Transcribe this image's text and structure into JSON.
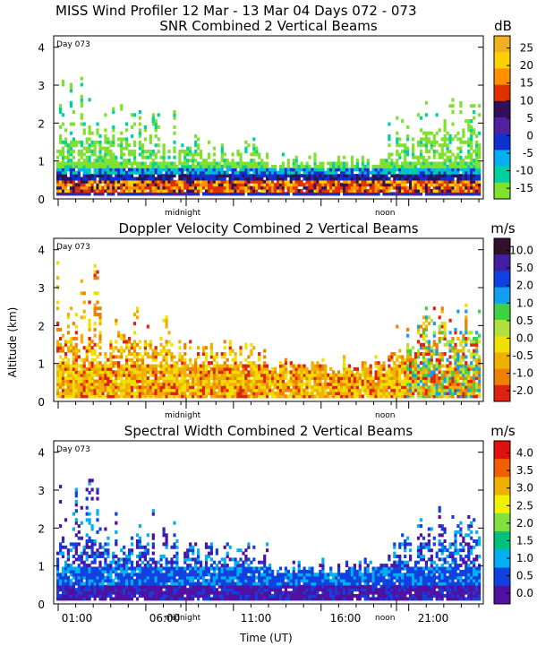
{
  "header": "MISS Wind Profiler  12 Mar - 13 Mar 04 Days 072 - 073",
  "y_axis_label": "Altitude (km)",
  "x_axis_label": "Time (UT)",
  "x_ticks": [
    "01:00",
    "06:00",
    "11:00",
    "16:00",
    "21:00"
  ],
  "chart_data": [
    {
      "type": "heatmap",
      "title": "SNR Combined 2 Vertical Beams",
      "unit": "dB",
      "day_label": "Day 073",
      "time_markers": [
        "midnight",
        "noon"
      ],
      "yticks": [
        0,
        1,
        2,
        3,
        4
      ],
      "ylim": [
        0,
        4.3
      ],
      "colorbar": {
        "labels": [
          "25",
          "20",
          "15",
          "10",
          "5",
          "0",
          "-5",
          "-10",
          "-15"
        ],
        "colors": [
          "#f0b020",
          "#ffd000",
          "#ff9000",
          "#e03000",
          "#30105a",
          "#5020a0",
          "#1030d0",
          "#00b0f0",
          "#00d0a0",
          "#80e030"
        ]
      }
    },
    {
      "type": "heatmap",
      "title": "Doppler Velocity Combined 2 Vertical Beams",
      "unit": "m/s",
      "day_label": "Day 073",
      "time_markers": [
        "midnight",
        "noon"
      ],
      "yticks": [
        0,
        1,
        2,
        3,
        4
      ],
      "ylim": [
        0,
        4.3
      ],
      "colorbar": {
        "labels": [
          "10.0",
          "5.0",
          "2.0",
          "1.0",
          "0.5",
          "0.0",
          "-0.5",
          "-1.0",
          "-2.0"
        ],
        "colors": [
          "#30102a",
          "#4020a0",
          "#1040e0",
          "#10a0f0",
          "#40d040",
          "#b0e040",
          "#f0e000",
          "#f0b000",
          "#f08000",
          "#e02010"
        ]
      }
    },
    {
      "type": "heatmap",
      "title": "Spectral Width Combined 2 Vertical Beams",
      "unit": "m/s",
      "day_label": "Day 073",
      "time_markers": [
        "midnight",
        "noon"
      ],
      "yticks": [
        0,
        1,
        2,
        3,
        4
      ],
      "ylim": [
        0,
        4.3
      ],
      "colorbar": {
        "labels": [
          "4.0",
          "3.5",
          "3.0",
          "2.5",
          "2.0",
          "1.5",
          "1.0",
          "0.5",
          "0.0"
        ],
        "colors": [
          "#e01010",
          "#f06000",
          "#f0b000",
          "#f0f000",
          "#80e040",
          "#00c080",
          "#00b0f0",
          "#1040e0",
          "#5010a0"
        ]
      }
    }
  ]
}
